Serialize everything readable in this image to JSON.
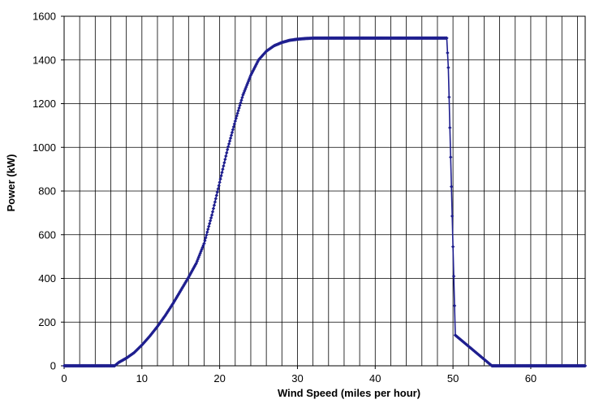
{
  "chart_data": {
    "type": "line",
    "title": "",
    "xlabel": "Wind Speed (miles per hour)",
    "ylabel": "Power (kW)",
    "xlim": [
      0,
      67
    ],
    "ylim": [
      0,
      1600
    ],
    "x_ticks": [
      0,
      10,
      20,
      30,
      40,
      50,
      60
    ],
    "y_ticks": [
      0,
      200,
      400,
      600,
      800,
      1000,
      1200,
      1400,
      1600
    ],
    "x_gridline_step": 2,
    "grid": true,
    "legend": "none",
    "series_color": "#1f1f8f",
    "marker": "small diamond",
    "series": [
      {
        "x": [
          0,
          2,
          4,
          6,
          6.5,
          7,
          8,
          9,
          10,
          11,
          12,
          13,
          14,
          15,
          16,
          17,
          18,
          19,
          20,
          21,
          22,
          23,
          24,
          25,
          26,
          27,
          28,
          29,
          30,
          31,
          32,
          33,
          35,
          40,
          45,
          49.2,
          49.4,
          49.5,
          49.6,
          49.7,
          49.8,
          49.9,
          50.0,
          50.1,
          50.2,
          50.3,
          55,
          60,
          65,
          67
        ],
        "y": [
          0,
          0,
          0,
          0,
          0,
          15,
          35,
          60,
          95,
          135,
          180,
          230,
          285,
          345,
          405,
          470,
          560,
          690,
          840,
          990,
          1120,
          1240,
          1330,
          1400,
          1440,
          1465,
          1480,
          1490,
          1495,
          1498,
          1500,
          1500,
          1500,
          1500,
          1500,
          1500,
          1365,
          1230,
          1090,
          955,
          820,
          685,
          545,
          410,
          275,
          140,
          0,
          0,
          0,
          0
        ]
      }
    ]
  }
}
